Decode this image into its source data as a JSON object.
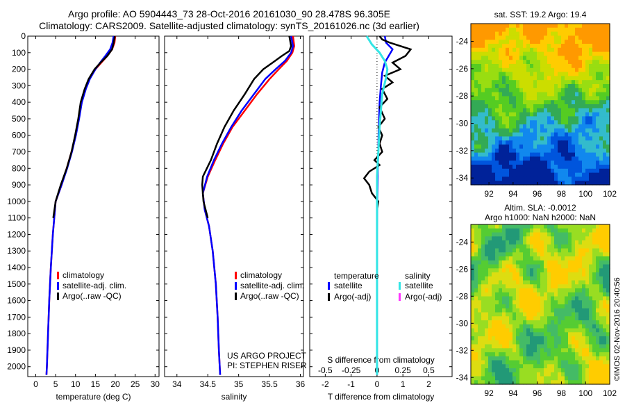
{
  "header": {
    "line1": "Argo profile: AO 5904443_73 28-Oct-2016 20161030_90 28.478S 96.305E",
    "line2": "Climatology: CARS2009. Satellite-adjusted climatology: synTS_20161026.nc (3d earlier)"
  },
  "colors": {
    "climatology": "#ff0000",
    "satellite": "#0000ff",
    "argo": "#000000",
    "s_satellite": "#33e5e5",
    "s_argo": "#ff33ff"
  },
  "chart_data": [
    {
      "type": "line",
      "xlabel": "temperature (deg C)",
      "xlim": [
        -2,
        31
      ],
      "ylim": [
        2060,
        0
      ],
      "xticks": [
        0,
        5,
        10,
        15,
        20,
        25,
        30
      ],
      "yticks": [
        0,
        100,
        200,
        300,
        400,
        500,
        600,
        700,
        800,
        900,
        1000,
        1100,
        1200,
        1300,
        1400,
        1500,
        1600,
        1700,
        1800,
        1900,
        2000
      ],
      "legend": [
        "climatology",
        "satellite-adj. clim.",
        "Argo(..raw -QC)"
      ],
      "series": [
        {
          "name": "climatology",
          "color": "#ff0000",
          "points": [
            [
              20,
              0
            ],
            [
              19.8,
              40
            ],
            [
              19.2,
              80
            ],
            [
              18,
              120
            ],
            [
              16.5,
              160
            ],
            [
              15,
              200
            ],
            [
              13.5,
              260
            ],
            [
              12.5,
              320
            ],
            [
              11.5,
              400
            ],
            [
              10.8,
              500
            ],
            [
              10,
              600
            ],
            [
              9,
              700
            ],
            [
              7.8,
              800
            ],
            [
              6.5,
              900
            ],
            [
              5,
              1000
            ],
            [
              4.3,
              1200
            ],
            [
              3.8,
              1400
            ],
            [
              3.4,
              1600
            ],
            [
              3.1,
              1800
            ],
            [
              2.8,
              2000
            ],
            [
              2.7,
              2050
            ]
          ]
        },
        {
          "name": "satellite-adj. clim.",
          "color": "#0000ff",
          "points": [
            [
              19.6,
              0
            ],
            [
              19.3,
              40
            ],
            [
              18.7,
              80
            ],
            [
              17.5,
              120
            ],
            [
              16.2,
              160
            ],
            [
              15,
              200
            ],
            [
              13.6,
              260
            ],
            [
              12.6,
              320
            ],
            [
              11.6,
              400
            ],
            [
              10.9,
              500
            ],
            [
              10.1,
              600
            ],
            [
              9.1,
              700
            ],
            [
              7.9,
              800
            ],
            [
              6.5,
              900
            ],
            [
              5,
              1000
            ],
            [
              4.3,
              1200
            ],
            [
              3.8,
              1400
            ],
            [
              3.4,
              1600
            ],
            [
              3.1,
              1800
            ],
            [
              2.8,
              2000
            ],
            [
              2.7,
              2050
            ]
          ]
        },
        {
          "name": "Argo(..raw -QC)",
          "color": "#000000",
          "points": [
            [
              19.9,
              0
            ],
            [
              19.6,
              40
            ],
            [
              19.2,
              80
            ],
            [
              18,
              120
            ],
            [
              16.3,
              160
            ],
            [
              14.8,
              200
            ],
            [
              13.3,
              260
            ],
            [
              12.3,
              320
            ],
            [
              11.3,
              400
            ],
            [
              10.7,
              500
            ],
            [
              9.9,
              600
            ],
            [
              9,
              700
            ],
            [
              7.8,
              800
            ],
            [
              6.3,
              900
            ],
            [
              5,
              1000
            ],
            [
              4.4,
              1100
            ]
          ]
        }
      ]
    },
    {
      "type": "line",
      "xlabel": "salinity",
      "xlim": [
        33.8,
        36.05
      ],
      "ylim": [
        2060,
        0
      ],
      "xticks": [
        34,
        34.5,
        35,
        35.5,
        36
      ],
      "legend": [
        "climatology",
        "satellite-adj. clim.",
        "Argo(..raw -QC)"
      ],
      "annotation": [
        "US ARGO PROJECT",
        "PI: STEPHEN RISER"
      ],
      "series": [
        {
          "name": "climatology",
          "color": "#ff0000",
          "points": [
            [
              35.88,
              0
            ],
            [
              35.9,
              60
            ],
            [
              35.87,
              100
            ],
            [
              35.78,
              150
            ],
            [
              35.65,
              200
            ],
            [
              35.5,
              260
            ],
            [
              35.3,
              350
            ],
            [
              35.1,
              450
            ],
            [
              34.9,
              550
            ],
            [
              34.75,
              650
            ],
            [
              34.62,
              750
            ],
            [
              34.5,
              850
            ],
            [
              34.42,
              950
            ],
            [
              34.45,
              1050
            ],
            [
              34.52,
              1150
            ],
            [
              34.58,
              1300
            ],
            [
              34.63,
              1500
            ],
            [
              34.66,
              1700
            ],
            [
              34.68,
              1900
            ],
            [
              34.7,
              2050
            ]
          ]
        },
        {
          "name": "satellite-adj. clim.",
          "color": "#0000ff",
          "points": [
            [
              35.85,
              0
            ],
            [
              35.88,
              60
            ],
            [
              35.85,
              100
            ],
            [
              35.75,
              150
            ],
            [
              35.6,
              200
            ],
            [
              35.43,
              260
            ],
            [
              35.25,
              350
            ],
            [
              35.05,
              450
            ],
            [
              34.88,
              550
            ],
            [
              34.73,
              650
            ],
            [
              34.6,
              750
            ],
            [
              34.49,
              850
            ],
            [
              34.42,
              950
            ],
            [
              34.45,
              1050
            ],
            [
              34.52,
              1150
            ],
            [
              34.58,
              1300
            ],
            [
              34.63,
              1500
            ],
            [
              34.66,
              1700
            ],
            [
              34.68,
              1900
            ],
            [
              34.7,
              2050
            ]
          ]
        },
        {
          "name": "Argo(..raw -QC)",
          "color": "#000000",
          "points": [
            [
              35.82,
              0
            ],
            [
              35.85,
              60
            ],
            [
              35.82,
              90
            ],
            [
              35.7,
              120
            ],
            [
              35.55,
              160
            ],
            [
              35.4,
              200
            ],
            [
              35.25,
              260
            ],
            [
              35.1,
              350
            ],
            [
              34.92,
              450
            ],
            [
              34.77,
              550
            ],
            [
              34.65,
              650
            ],
            [
              34.55,
              750
            ],
            [
              34.42,
              850
            ],
            [
              34.41,
              900
            ],
            [
              34.43,
              1000
            ],
            [
              34.5,
              1100
            ]
          ]
        }
      ]
    },
    {
      "type": "line",
      "xlabel": "T difference from climatology",
      "xlabel2": "S difference from climatology",
      "xlim": [
        -2.6,
        2.9
      ],
      "ylim": [
        2060,
        0
      ],
      "xticks": [
        -2,
        -1,
        0,
        1,
        2
      ],
      "xticks2": [
        -0.5,
        -0.25,
        0,
        0.25,
        0.5
      ],
      "xtick2_labels": [
        "-0.5",
        "-0.25",
        "0",
        "0.25",
        "0.5"
      ],
      "legend_headers": [
        "temperature",
        "salinity"
      ],
      "legend": [
        "satellite",
        "Argo(-adj)",
        "satellite",
        "Argo(-adj)"
      ],
      "series": [
        {
          "name": "satellite",
          "color": "#0000ff",
          "points": [
            [
              0.3,
              0
            ],
            [
              0.35,
              40
            ],
            [
              0.6,
              80
            ],
            [
              0.45,
              120
            ],
            [
              0.3,
              160
            ],
            [
              0.2,
              220
            ],
            [
              0.15,
              300
            ],
            [
              0.1,
              400
            ],
            [
              0.08,
              500
            ],
            [
              0.06,
              600
            ],
            [
              0.05,
              700
            ],
            [
              0.03,
              800
            ],
            [
              0.02,
              900
            ],
            [
              0.01,
              1000
            ],
            [
              0,
              1200
            ],
            [
              0,
              1500
            ],
            [
              0,
              2050
            ]
          ]
        },
        {
          "name": "Argo(-adj)",
          "color": "#000000",
          "points": [
            [
              0.1,
              0
            ],
            [
              0.2,
              20
            ],
            [
              0.5,
              40
            ],
            [
              1.3,
              80
            ],
            [
              1.1,
              120
            ],
            [
              0.6,
              160
            ],
            [
              0.9,
              200
            ],
            [
              0.3,
              240
            ],
            [
              0.6,
              280
            ],
            [
              0.2,
              320
            ],
            [
              0.4,
              380
            ],
            [
              0.1,
              430
            ],
            [
              0.3,
              500
            ],
            [
              0.05,
              550
            ],
            [
              0.2,
              600
            ],
            [
              0.1,
              650
            ],
            [
              0.2,
              700
            ],
            [
              -0.1,
              750
            ],
            [
              0.1,
              780
            ],
            [
              -0.3,
              820
            ],
            [
              -0.5,
              860
            ],
            [
              -0.3,
              900
            ],
            [
              -0.2,
              950
            ],
            [
              0.05,
              1000
            ],
            [
              0,
              1050
            ]
          ]
        },
        {
          "name": "satellite (salinity)",
          "color": "#33e5e5",
          "points": [
            [
              -0.4,
              0
            ],
            [
              -0.2,
              50
            ],
            [
              0.1,
              100
            ],
            [
              0.3,
              150
            ],
            [
              0.4,
              200
            ],
            [
              0.35,
              250
            ],
            [
              0.2,
              350
            ],
            [
              0.15,
              450
            ],
            [
              0.1,
              550
            ],
            [
              0.05,
              700
            ],
            [
              0,
              850
            ],
            [
              0,
              1000
            ],
            [
              0,
              1500
            ],
            [
              0,
              2050
            ]
          ]
        }
      ]
    },
    {
      "type": "heatmap",
      "title": "sat. SST: 19.2 Argo: 19.4",
      "xticks": [
        92,
        94,
        96,
        98,
        100,
        102
      ],
      "yticks": [
        -24,
        -26,
        -28,
        -30,
        -32,
        -34
      ],
      "xlim": [
        90.5,
        102
      ],
      "ylim": [
        -34.5,
        -22.7
      ],
      "colormap": [
        "#002299",
        "#0055dd",
        "#1188ee",
        "#33bbcc",
        "#33aa55",
        "#55cc22",
        "#99dd11",
        "#ccdd00",
        "#ffcc00",
        "#ff9900"
      ]
    },
    {
      "type": "heatmap",
      "title": "Altim. SLA: -0.0012",
      "subtitle": "Argo h1000: NaN h2000: NaN",
      "xticks": [
        92,
        94,
        96,
        98,
        100,
        102
      ],
      "yticks": [
        -24,
        -26,
        -28,
        -30,
        -32,
        -34
      ],
      "xlim": [
        90.5,
        102
      ],
      "ylim": [
        -34.5,
        -22.7
      ],
      "colormap": [
        "#229977",
        "#44bb66",
        "#55cc33",
        "#99dd22",
        "#dddd11",
        "#ffcc00"
      ]
    }
  ],
  "footer": {
    "stamp": "©IMOS 02-Nov-2016 20:40:56"
  }
}
